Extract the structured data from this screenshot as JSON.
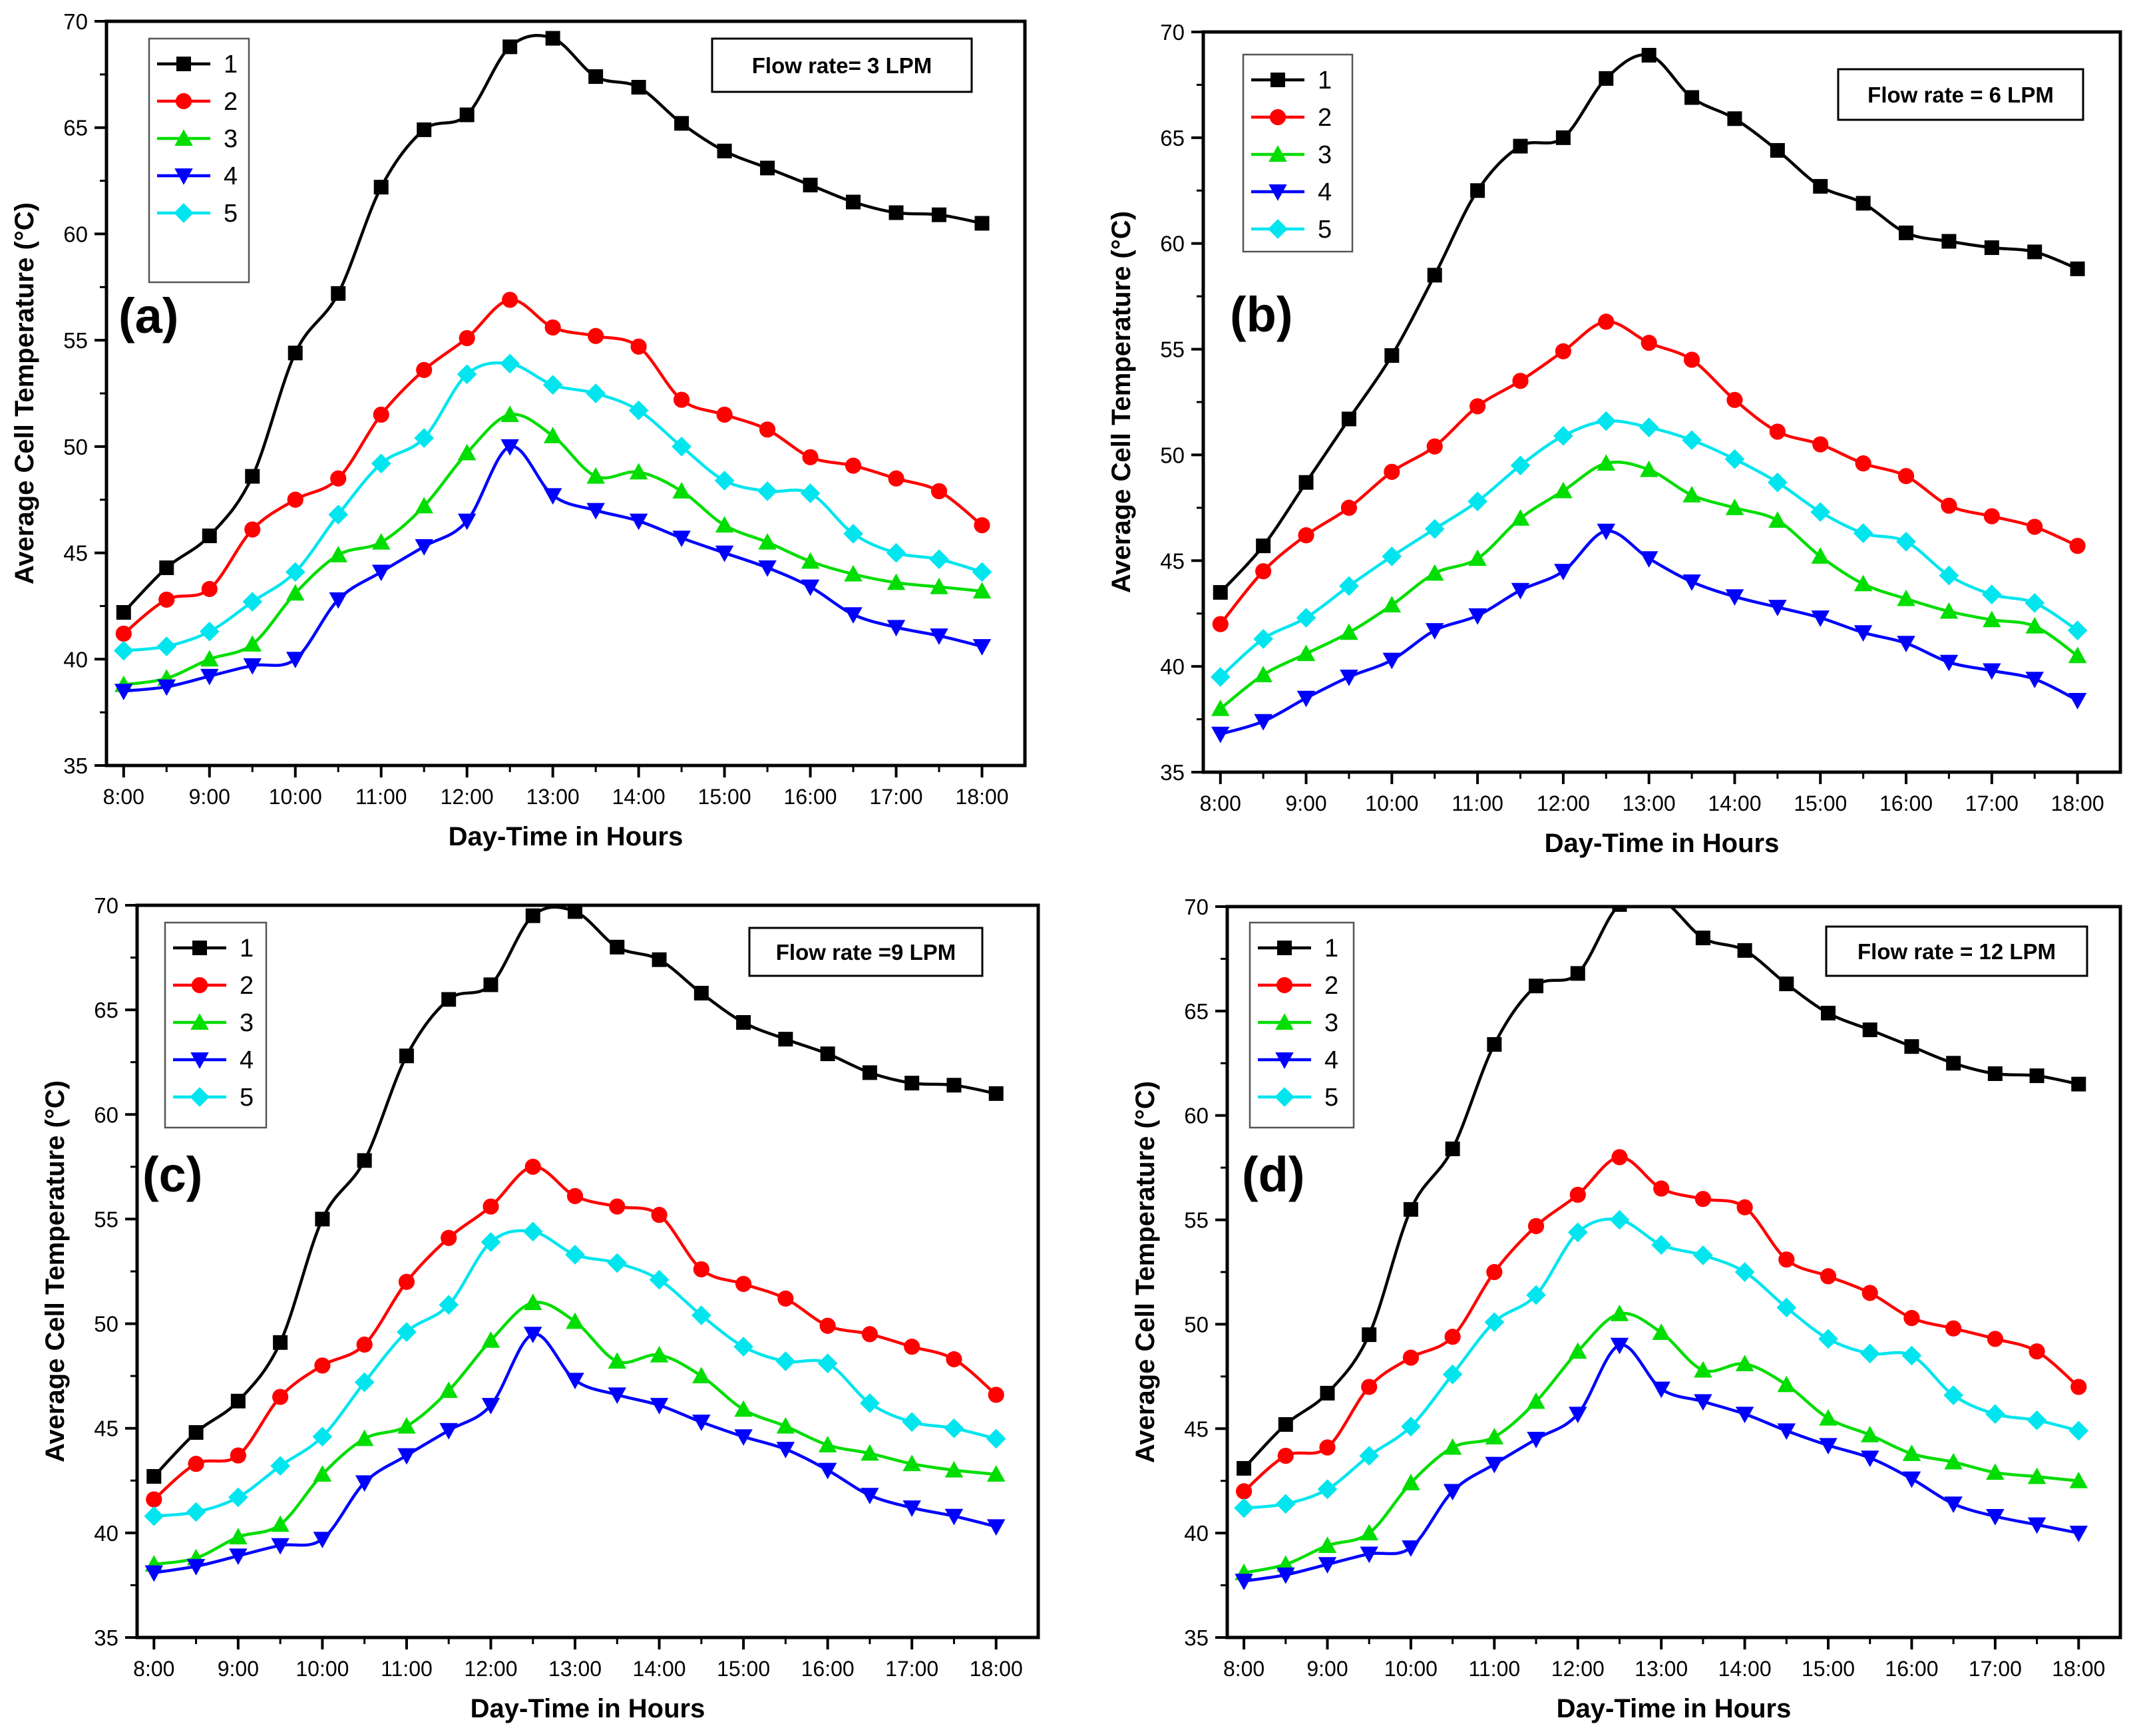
{
  "figure": {
    "series_colors": [
      "#000000",
      "#ff0000",
      "#00dd00",
      "#0000ff",
      "#00e5ee"
    ],
    "series_markers": [
      "square",
      "circle",
      "triangle-up",
      "triangle-down",
      "diamond"
    ]
  },
  "chart_data": [
    {
      "type": "line",
      "panel_label": "(a)",
      "annotation": "Flow rate= 3 LPM",
      "xlabel": "Day-Time in Hours",
      "ylabel": "Average Cell Temperature (°C)",
      "ylim": [
        35,
        70
      ],
      "yticks": [
        35,
        40,
        45,
        50,
        55,
        60,
        65,
        70
      ],
      "xticklabels": [
        "8:00",
        "9:00",
        "10:00",
        "11:00",
        "12:00",
        "13:00",
        "14:00",
        "15:00",
        "16:00",
        "17:00",
        "18:00"
      ],
      "x": [
        8,
        8.5,
        9,
        9.5,
        10,
        10.5,
        11,
        11.5,
        12,
        12.5,
        13,
        13.5,
        14,
        14.5,
        15,
        15.5,
        16,
        16.5,
        17,
        17.5,
        18
      ],
      "legend_position": "top-left",
      "series": [
        {
          "name": "1",
          "values": [
            42.2,
            44.3,
            45.8,
            48.6,
            54.4,
            57.2,
            62.2,
            64.9,
            65.6,
            68.8,
            69.2,
            67.4,
            66.9,
            65.2,
            63.9,
            63.1,
            62.3,
            61.5,
            61.0,
            60.9,
            60.5
          ]
        },
        {
          "name": "2",
          "values": [
            41.2,
            42.8,
            43.3,
            46.1,
            47.5,
            48.5,
            51.5,
            53.6,
            55.1,
            56.9,
            55.6,
            55.2,
            54.7,
            52.2,
            51.5,
            50.8,
            49.5,
            49.1,
            48.5,
            47.9,
            46.3
          ]
        },
        {
          "name": "3",
          "values": [
            38.8,
            39.1,
            40.0,
            40.7,
            43.1,
            44.9,
            45.5,
            47.2,
            49.7,
            51.5,
            50.5,
            48.6,
            48.8,
            47.9,
            46.3,
            45.5,
            44.6,
            44.0,
            43.6,
            43.4,
            43.2
          ]
        },
        {
          "name": "4",
          "values": [
            38.5,
            38.7,
            39.2,
            39.7,
            40.0,
            42.8,
            44.1,
            45.3,
            46.5,
            50.0,
            47.7,
            47.0,
            46.5,
            45.7,
            45.0,
            44.3,
            43.4,
            42.1,
            41.5,
            41.1,
            40.6
          ]
        },
        {
          "name": "5",
          "values": [
            40.4,
            40.6,
            41.3,
            42.7,
            44.1,
            46.8,
            49.2,
            50.4,
            53.4,
            53.9,
            52.9,
            52.5,
            51.7,
            50.0,
            48.4,
            47.9,
            47.8,
            45.9,
            45.0,
            44.7,
            44.1
          ]
        }
      ]
    },
    {
      "type": "line",
      "panel_label": "(b)",
      "annotation": "Flow rate = 6 LPM",
      "xlabel": "Day-Time in Hours",
      "ylabel": "Average Cell Temperature (°C)",
      "ylim": [
        35,
        70
      ],
      "yticks": [
        35,
        40,
        45,
        50,
        55,
        60,
        65,
        70
      ],
      "xticklabels": [
        "8:00",
        "9:00",
        "10:00",
        "11:00",
        "12:00",
        "13:00",
        "14:00",
        "15:00",
        "16:00",
        "17:00",
        "18:00"
      ],
      "x": [
        8,
        8.5,
        9,
        9.5,
        10,
        10.5,
        11,
        11.5,
        12,
        12.5,
        13,
        13.5,
        14,
        14.5,
        15,
        15.5,
        16,
        16.5,
        17,
        17.5,
        18
      ],
      "legend_position": "top-left",
      "series": [
        {
          "name": "1",
          "values": [
            43.5,
            45.7,
            48.7,
            51.7,
            54.7,
            58.5,
            62.5,
            64.6,
            65.0,
            67.8,
            68.9,
            66.9,
            65.9,
            64.4,
            62.7,
            61.9,
            60.5,
            60.1,
            59.8,
            59.6,
            58.8
          ]
        },
        {
          "name": "2",
          "values": [
            42.0,
            44.5,
            46.2,
            47.5,
            49.2,
            50.4,
            52.3,
            53.5,
            54.9,
            56.3,
            55.3,
            54.5,
            52.6,
            51.1,
            50.5,
            49.6,
            49.0,
            47.6,
            47.1,
            46.6,
            45.7
          ]
        },
        {
          "name": "3",
          "values": [
            38.0,
            39.6,
            40.6,
            41.6,
            42.9,
            44.4,
            45.1,
            47.0,
            48.3,
            49.6,
            49.3,
            48.1,
            47.5,
            46.9,
            45.2,
            43.9,
            43.2,
            42.6,
            42.2,
            41.9,
            40.5
          ]
        },
        {
          "name": "4",
          "values": [
            36.8,
            37.4,
            38.5,
            39.5,
            40.3,
            41.7,
            42.4,
            43.6,
            44.5,
            46.4,
            45.1,
            44.0,
            43.3,
            42.8,
            42.3,
            41.6,
            41.1,
            40.2,
            39.8,
            39.4,
            38.4
          ]
        },
        {
          "name": "5",
          "values": [
            39.5,
            41.3,
            42.3,
            43.8,
            45.2,
            46.5,
            47.8,
            49.5,
            50.9,
            51.6,
            51.3,
            50.7,
            49.8,
            48.7,
            47.3,
            46.3,
            45.9,
            44.3,
            43.4,
            43.0,
            41.7
          ]
        }
      ]
    },
    {
      "type": "line",
      "panel_label": "(c)",
      "annotation": "Flow rate =9 LPM",
      "xlabel": "Day-Time in Hours",
      "ylabel": "Average Cell Temperature (°C)",
      "ylim": [
        35,
        70
      ],
      "yticks": [
        35,
        40,
        45,
        50,
        55,
        60,
        65,
        70
      ],
      "xticklabels": [
        "8:00",
        "9:00",
        "10:00",
        "11:00",
        "12:00",
        "13:00",
        "14:00",
        "15:00",
        "16:00",
        "17:00",
        "18:00"
      ],
      "x": [
        8,
        8.5,
        9,
        9.5,
        10,
        10.5,
        11,
        11.5,
        12,
        12.5,
        13,
        13.5,
        14,
        14.5,
        15,
        15.5,
        16,
        16.5,
        17,
        17.5,
        18
      ],
      "legend_position": "top-left",
      "series": [
        {
          "name": "1",
          "values": [
            42.7,
            44.8,
            46.3,
            49.1,
            55.0,
            57.8,
            62.8,
            65.5,
            66.2,
            69.5,
            69.7,
            68.0,
            67.4,
            65.8,
            64.4,
            63.6,
            62.9,
            62.0,
            61.5,
            61.4,
            61.0
          ]
        },
        {
          "name": "2",
          "values": [
            41.6,
            43.3,
            43.7,
            46.5,
            48.0,
            49.0,
            52.0,
            54.1,
            55.6,
            57.5,
            56.1,
            55.6,
            55.2,
            52.6,
            51.9,
            51.2,
            49.9,
            49.5,
            48.9,
            48.3,
            46.6
          ]
        },
        {
          "name": "3",
          "values": [
            38.5,
            38.8,
            39.8,
            40.4,
            42.8,
            44.5,
            45.1,
            46.8,
            49.2,
            51.0,
            50.1,
            48.2,
            48.5,
            47.5,
            45.9,
            45.1,
            44.2,
            43.8,
            43.3,
            43.0,
            42.8
          ]
        },
        {
          "name": "4",
          "values": [
            38.1,
            38.4,
            38.9,
            39.4,
            39.7,
            42.4,
            43.7,
            44.9,
            46.1,
            49.5,
            47.3,
            46.6,
            46.1,
            45.3,
            44.6,
            44.0,
            43.0,
            41.8,
            41.2,
            40.8,
            40.3
          ]
        },
        {
          "name": "5",
          "values": [
            40.8,
            41.0,
            41.7,
            43.2,
            44.6,
            47.2,
            49.6,
            50.9,
            53.9,
            54.4,
            53.3,
            52.9,
            52.1,
            50.4,
            48.9,
            48.2,
            48.1,
            46.2,
            45.3,
            45.0,
            44.5
          ]
        }
      ]
    },
    {
      "type": "line",
      "panel_label": "(d)",
      "annotation": "Flow rate = 12 LPM",
      "xlabel": "Day-Time in Hours",
      "ylabel": "Average Cell Temperature (°C)",
      "ylim": [
        35,
        70
      ],
      "yticks": [
        35,
        40,
        45,
        50,
        55,
        60,
        65,
        70
      ],
      "xticklabels": [
        "8:00",
        "9:00",
        "10:00",
        "11:00",
        "12:00",
        "13:00",
        "14:00",
        "15:00",
        "16:00",
        "17:00",
        "18:00"
      ],
      "x": [
        8,
        8.5,
        9,
        9.5,
        10,
        10.5,
        11,
        11.5,
        12,
        12.5,
        13,
        13.5,
        14,
        14.5,
        15,
        15.5,
        16,
        16.5,
        17,
        17.5,
        18
      ],
      "legend_position": "top-left",
      "series": [
        {
          "name": "1",
          "values": [
            43.1,
            45.2,
            46.7,
            49.5,
            55.5,
            58.4,
            63.4,
            66.2,
            66.8,
            70.1,
            70.3,
            68.5,
            67.9,
            66.3,
            64.9,
            64.1,
            63.3,
            62.5,
            62.0,
            61.9,
            61.5
          ]
        },
        {
          "name": "2",
          "values": [
            42.0,
            43.7,
            44.1,
            47.0,
            48.4,
            49.4,
            52.5,
            54.7,
            56.2,
            58.0,
            56.5,
            56.0,
            55.6,
            53.1,
            52.3,
            51.5,
            50.3,
            49.8,
            49.3,
            48.7,
            47.0
          ]
        },
        {
          "name": "3",
          "values": [
            38.1,
            38.5,
            39.4,
            40.0,
            42.4,
            44.1,
            44.6,
            46.3,
            48.7,
            50.5,
            49.6,
            47.8,
            48.1,
            47.1,
            45.5,
            44.7,
            43.8,
            43.4,
            42.9,
            42.7,
            42.5
          ]
        },
        {
          "name": "4",
          "values": [
            37.7,
            38.0,
            38.5,
            39.0,
            39.3,
            42.0,
            43.3,
            44.5,
            45.7,
            49.0,
            46.9,
            46.3,
            45.7,
            44.9,
            44.2,
            43.6,
            42.6,
            41.4,
            40.8,
            40.4,
            40.0
          ]
        },
        {
          "name": "5",
          "values": [
            41.2,
            41.4,
            42.1,
            43.7,
            45.1,
            47.6,
            50.1,
            51.4,
            54.4,
            55.0,
            53.8,
            53.3,
            52.5,
            50.8,
            49.3,
            48.6,
            48.5,
            46.6,
            45.7,
            45.4,
            44.9
          ]
        }
      ]
    }
  ]
}
